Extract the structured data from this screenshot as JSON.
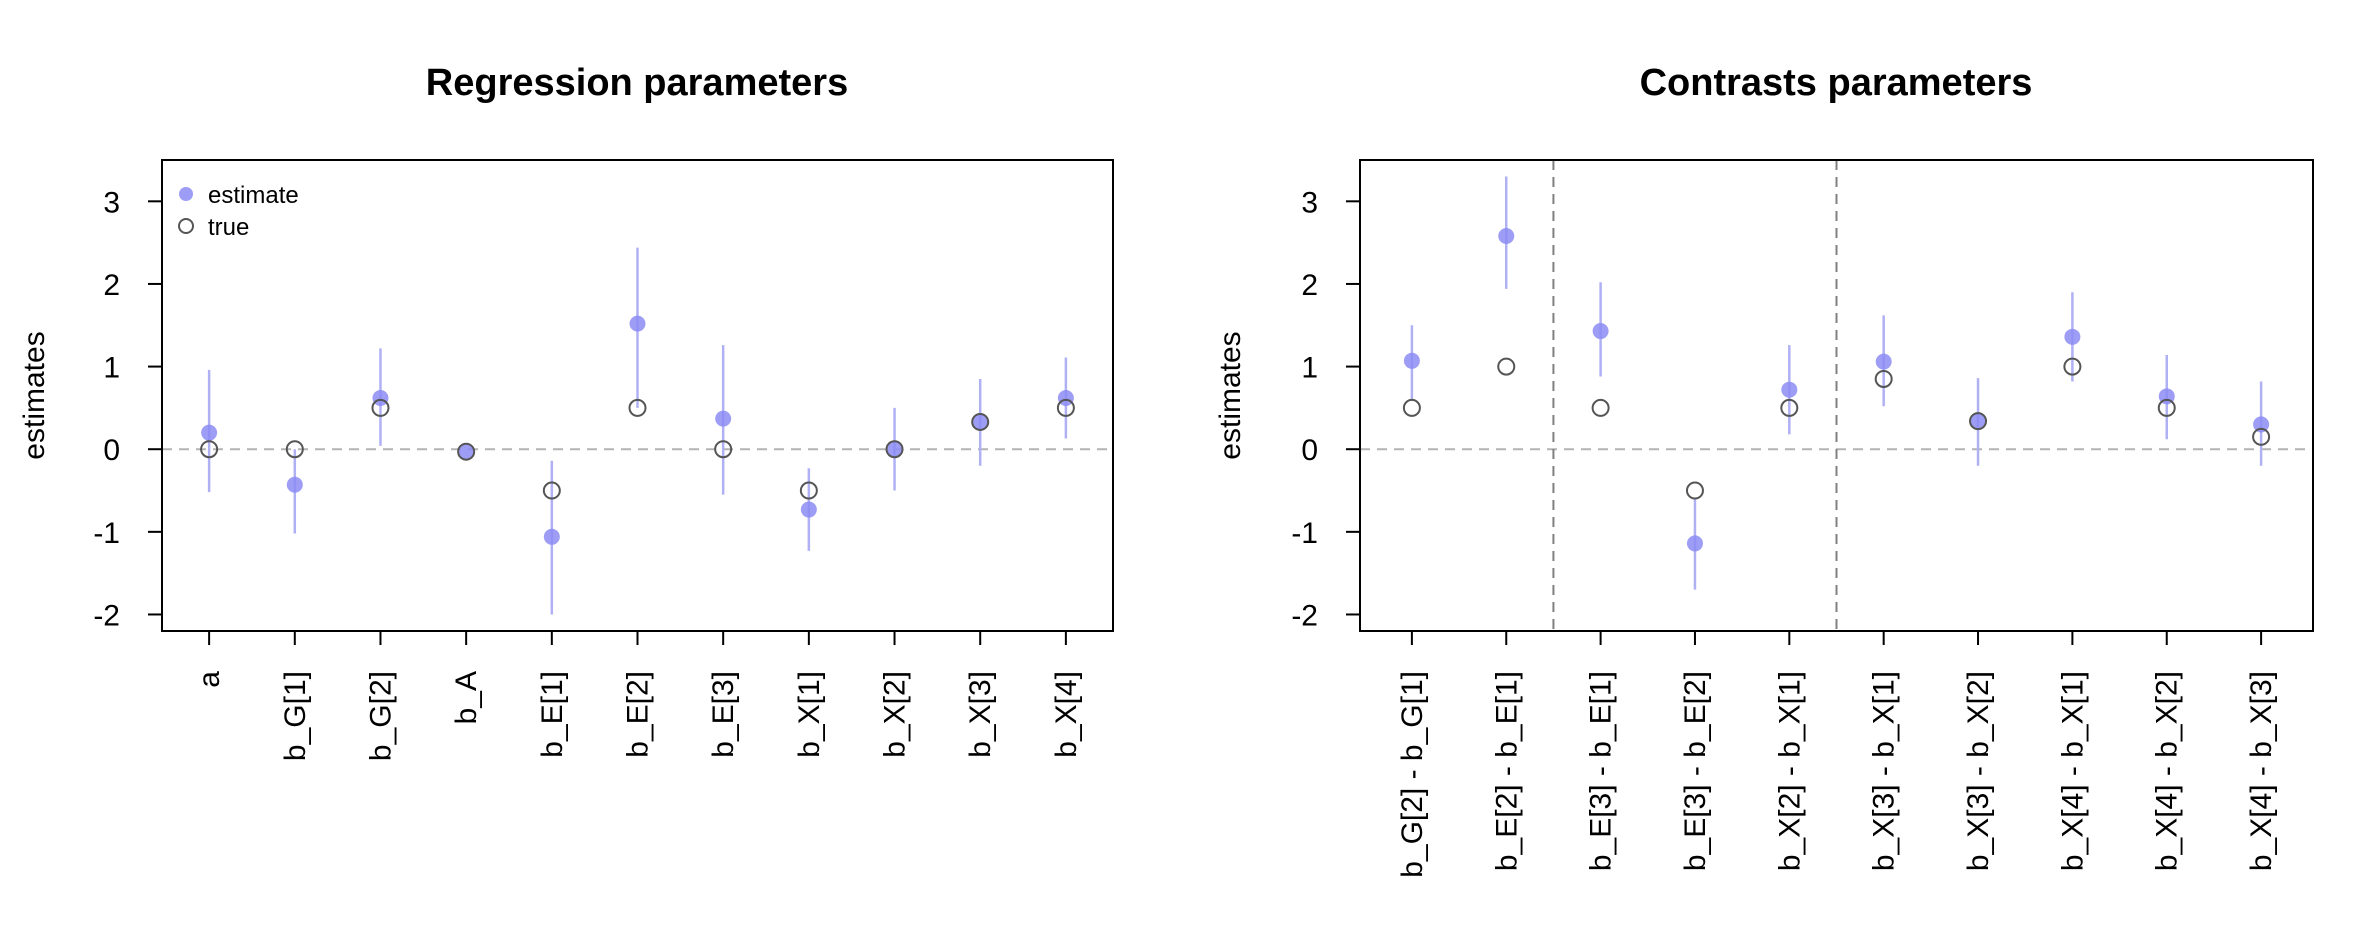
{
  "chart_data": [
    {
      "type": "scatter",
      "title": "Regression parameters",
      "ylabel": "estimates",
      "xlabel": "",
      "ylim": [
        -2.2,
        3.5
      ],
      "yticks": [
        -2,
        -1,
        0,
        1,
        2,
        3
      ],
      "ytick_labels": [
        "-2",
        "-1",
        "0",
        "1",
        "2",
        "3"
      ],
      "categories": [
        "a",
        "b_G[1]",
        "b_G[2]",
        "b_A",
        "b_E[1]",
        "b_E[2]",
        "b_E[3]",
        "b_X[1]",
        "b_X[2]",
        "b_X[3]",
        "b_X[4]"
      ],
      "reference_line": 0,
      "vertical_lines": [],
      "legend": {
        "placement": "top-left",
        "entries": [
          "estimate",
          "true"
        ]
      },
      "series": [
        {
          "name": "estimate",
          "values": [
            0.2,
            -0.43,
            0.62,
            -0.03,
            -1.06,
            1.52,
            0.37,
            -0.73,
            0.0,
            0.34,
            0.62
          ],
          "lower": [
            -0.52,
            -1.02,
            0.04,
            -0.03,
            -2.0,
            0.5,
            -0.55,
            -1.23,
            -0.5,
            -0.2,
            0.13
          ],
          "upper": [
            0.96,
            0.0,
            1.22,
            -0.03,
            -0.14,
            2.44,
            1.26,
            -0.23,
            0.5,
            0.85,
            1.11
          ]
        },
        {
          "name": "true",
          "values": [
            0.0,
            0.0,
            0.5,
            -0.03,
            -0.5,
            0.5,
            0.0,
            -0.5,
            0.0,
            0.33,
            0.5
          ]
        }
      ],
      "colors": {
        "estimate": "#8c8cf5",
        "interval": "#b0b0f5",
        "true": "#555555",
        "reference": "#b4b4b4"
      }
    },
    {
      "type": "scatter",
      "title": "Contrasts parameters",
      "ylabel": "estimates",
      "xlabel": "",
      "ylim": [
        -2.2,
        3.5
      ],
      "yticks": [
        -2,
        -1,
        0,
        1,
        2,
        3
      ],
      "ytick_labels": [
        "-2",
        "-1",
        "0",
        "1",
        "2",
        "3"
      ],
      "categories": [
        "b_G[2] - b_G[1]",
        "b_E[2] - b_E[1]",
        "b_E[3] - b_E[1]",
        "b_E[3] - b_E[2]",
        "b_X[2] - b_X[1]",
        "b_X[3] - b_X[1]",
        "b_X[3] - b_X[2]",
        "b_X[4] - b_X[1]",
        "b_X[4] - b_X[2]",
        "b_X[4] - b_X[3]"
      ],
      "reference_line": 0,
      "vertical_lines": [
        1.5,
        4.5
      ],
      "series": [
        {
          "name": "estimate",
          "values": [
            1.07,
            2.58,
            1.43,
            -1.14,
            0.72,
            1.06,
            0.34,
            1.36,
            0.64,
            0.3
          ],
          "lower": [
            0.6,
            1.94,
            0.88,
            -1.7,
            0.18,
            0.52,
            -0.2,
            0.82,
            0.12,
            -0.2
          ],
          "upper": [
            1.5,
            3.3,
            2.02,
            -0.6,
            1.26,
            1.62,
            0.86,
            1.9,
            1.14,
            0.82
          ]
        },
        {
          "name": "true",
          "values": [
            0.5,
            1.0,
            0.5,
            -0.5,
            0.5,
            0.85,
            0.34,
            1.0,
            0.5,
            0.15
          ]
        }
      ],
      "colors": {
        "estimate": "#8c8cf5",
        "interval": "#b0b0f5",
        "true": "#555555",
        "reference": "#b4b4b4",
        "separator": "#808080"
      }
    }
  ]
}
